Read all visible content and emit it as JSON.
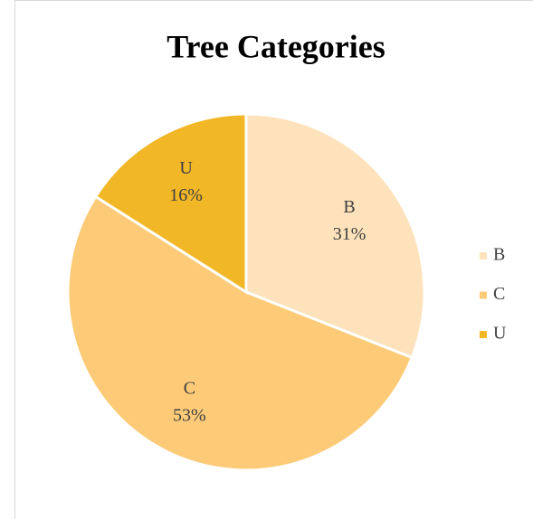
{
  "chart_data": {
    "type": "pie",
    "title": "Tree Categories",
    "categories": [
      "B",
      "C",
      "U"
    ],
    "values": [
      31,
      53,
      16
    ],
    "value_labels": [
      "31%",
      "53%",
      "16%"
    ],
    "colors": [
      "#fde2bb",
      "#fdcb78",
      "#f2b726"
    ],
    "legend": "right"
  }
}
